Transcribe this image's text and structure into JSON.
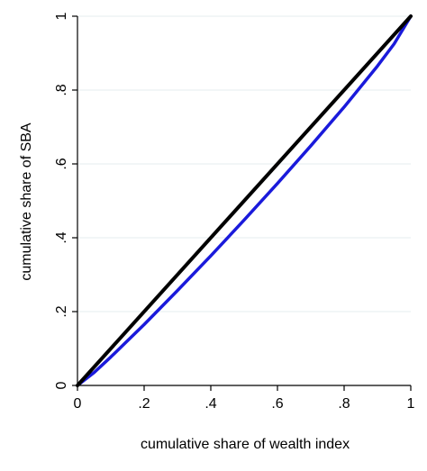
{
  "chart_data": {
    "type": "line",
    "title": "",
    "xlabel": "cumulative share of wealth index",
    "ylabel": "cumulative share of SBA",
    "xlim": [
      0,
      1
    ],
    "ylim": [
      0,
      1
    ],
    "x_ticks": [
      0,
      0.2,
      0.4,
      0.6,
      0.8,
      1
    ],
    "x_tick_labels": [
      "0",
      ".2",
      ".4",
      ".6",
      ".8",
      "1"
    ],
    "y_ticks": [
      0,
      0.2,
      0.4,
      0.6,
      0.8,
      1
    ],
    "y_tick_labels": [
      "0",
      ".2",
      ".4",
      ".6",
      ".8",
      "1"
    ],
    "grid": true,
    "legend": "none",
    "series": [
      {
        "color": "#1a1adb",
        "x": [
          0,
          0.05,
          0.1,
          0.2,
          0.3,
          0.4,
          0.5,
          0.6,
          0.7,
          0.8,
          0.9,
          0.95,
          1
        ],
        "y": [
          0,
          0.035,
          0.077,
          0.165,
          0.257,
          0.351,
          0.448,
          0.547,
          0.649,
          0.754,
          0.865,
          0.925,
          1
        ]
      },
      {
        "color": "#000000",
        "x": [
          0,
          1
        ],
        "y": [
          0,
          1
        ]
      }
    ]
  }
}
